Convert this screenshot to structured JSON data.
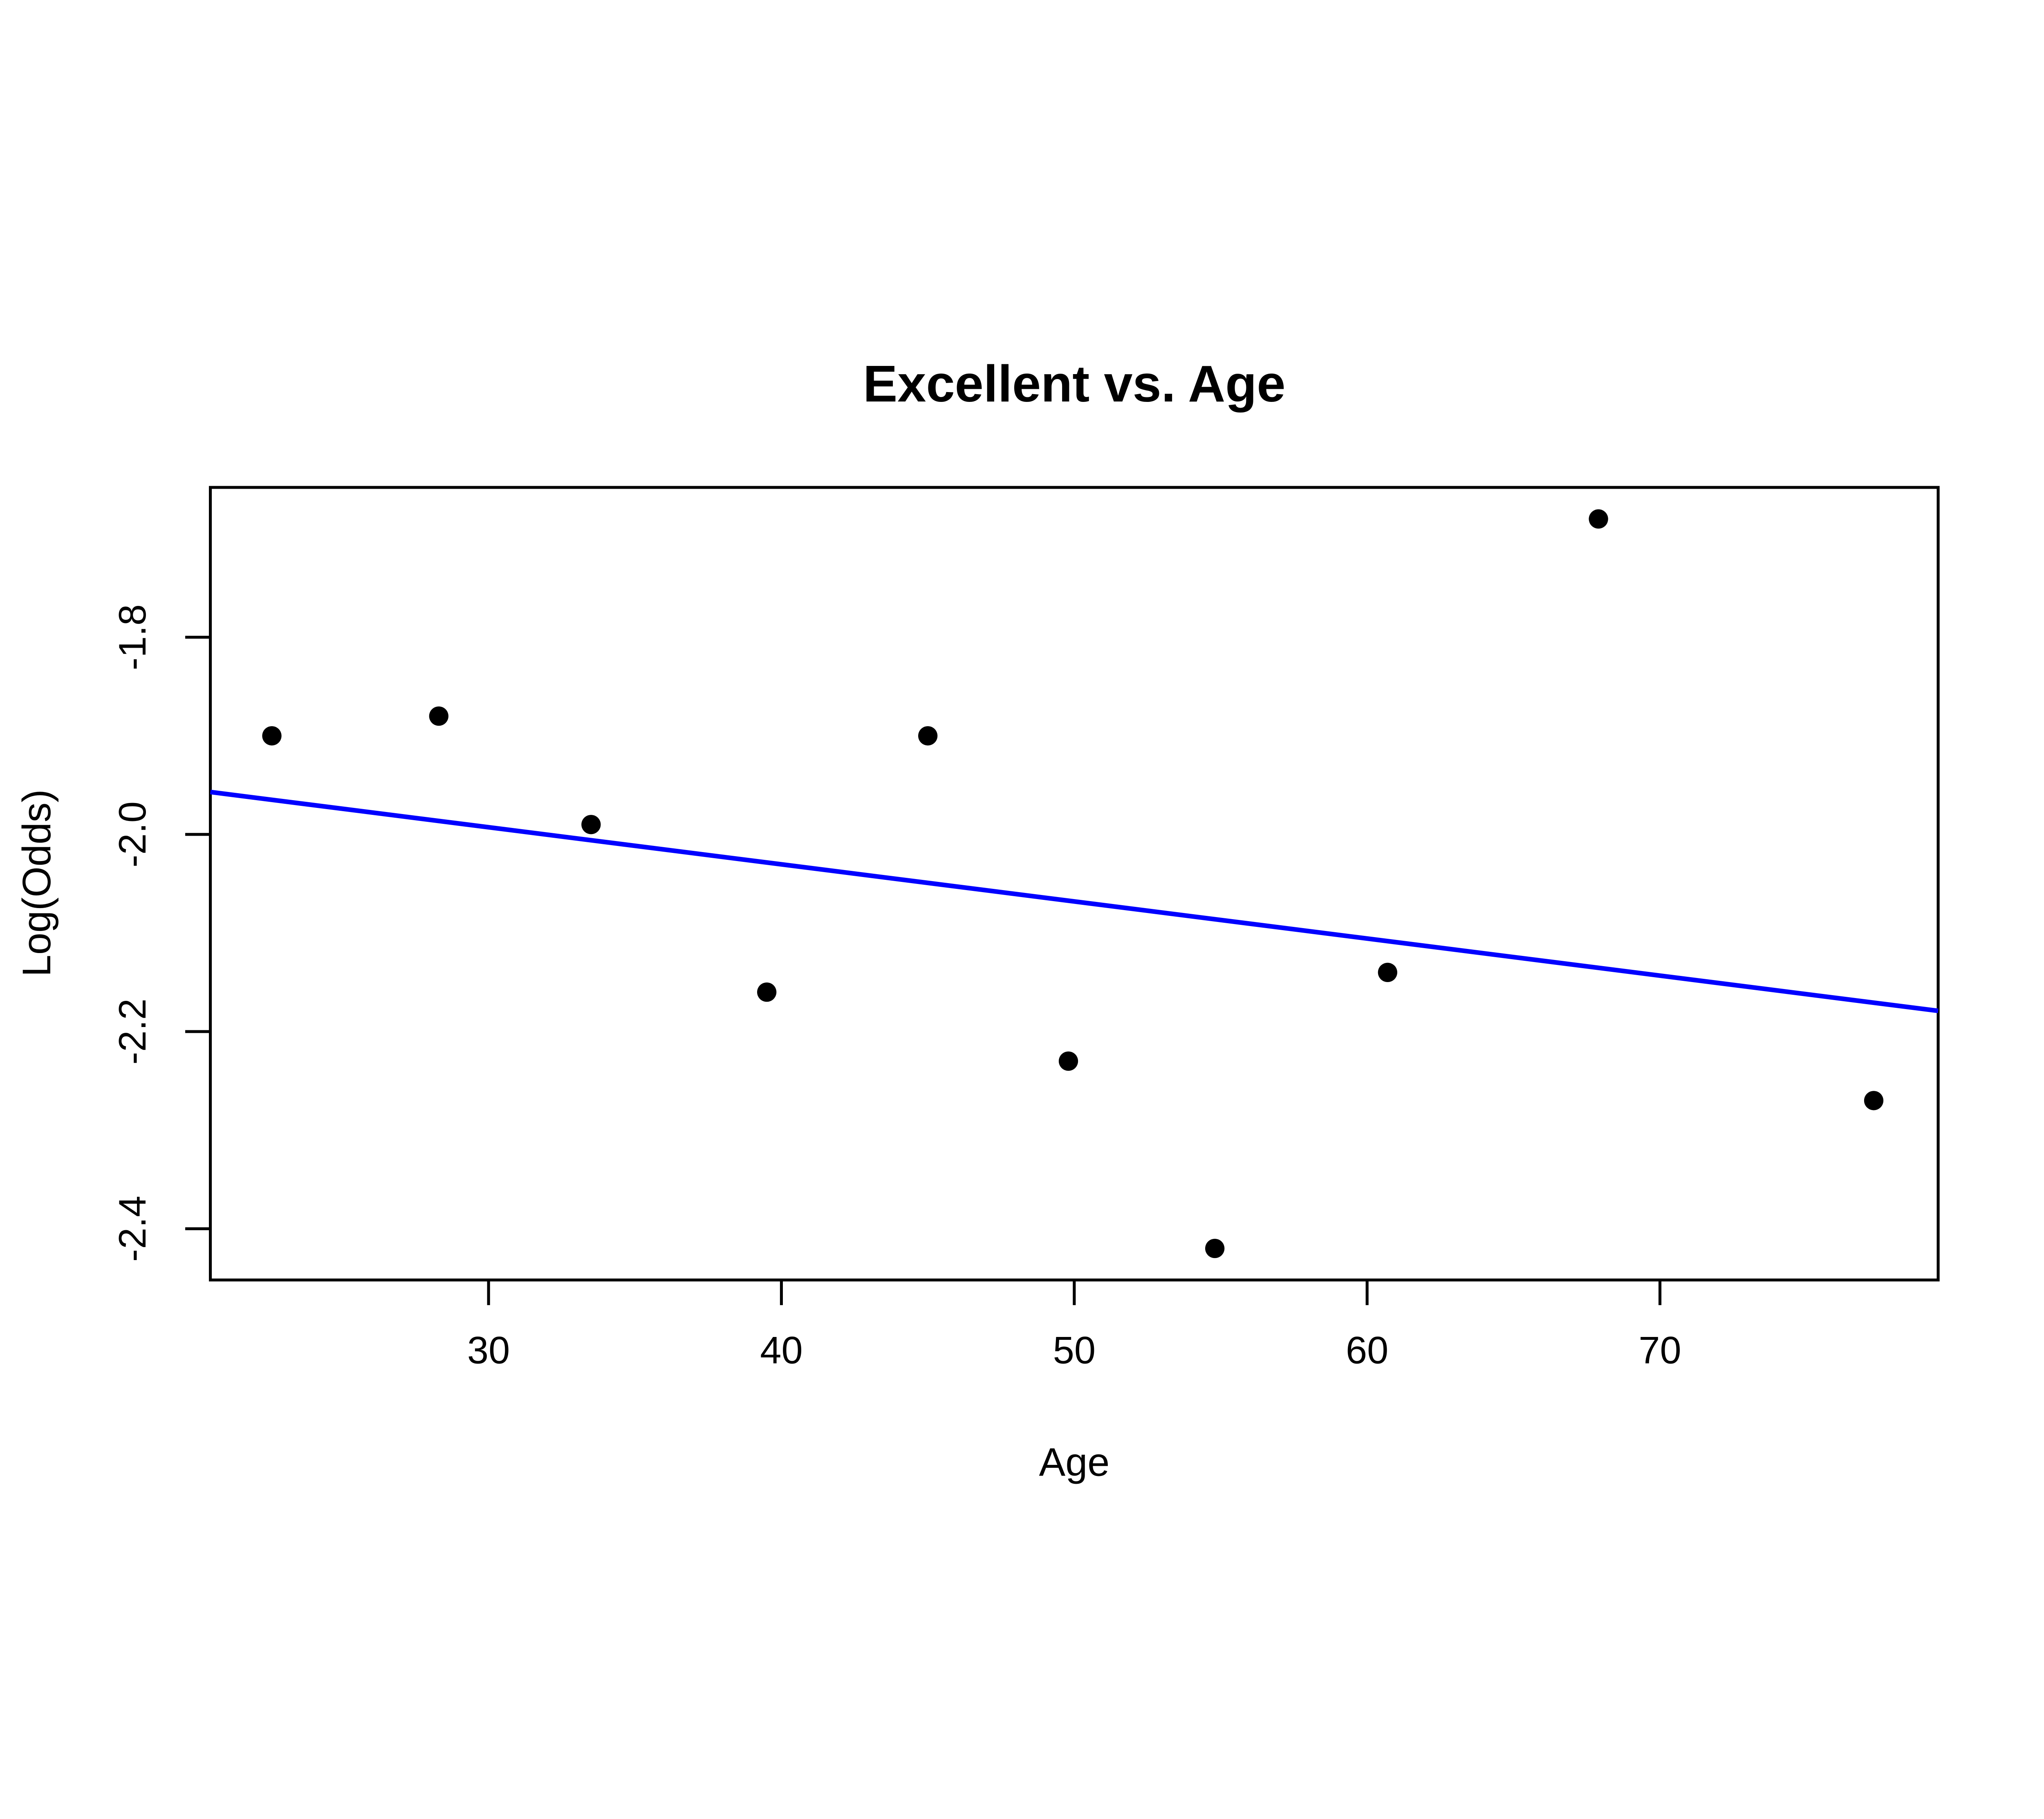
{
  "figure": {
    "background_color": "#ffffff",
    "foreground_color": "#000000"
  },
  "chart_data": {
    "type": "scatter",
    "title": "Excellent vs. Age",
    "xlabel": "Age",
    "ylabel": "Log(Odds)",
    "xlim": [
      20.5,
      79.5
    ],
    "ylim": [
      -2.452,
      -1.648
    ],
    "x_ticks": [
      30,
      40,
      50,
      60,
      70
    ],
    "y_ticks": [
      -2.4,
      -2.2,
      -2.0,
      -1.8
    ],
    "grid": false,
    "legend_position": "none",
    "point_color": "#000000",
    "point_radius": 7.3,
    "points": [
      {
        "x": 22.6,
        "y": -1.9
      },
      {
        "x": 28.3,
        "y": -1.88
      },
      {
        "x": 33.5,
        "y": -1.99
      },
      {
        "x": 39.5,
        "y": -2.16
      },
      {
        "x": 45.0,
        "y": -1.9
      },
      {
        "x": 49.8,
        "y": -2.23
      },
      {
        "x": 54.8,
        "y": -2.42
      },
      {
        "x": 60.7,
        "y": -2.14
      },
      {
        "x": 67.9,
        "y": -1.68
      },
      {
        "x": 77.3,
        "y": -2.27
      }
    ],
    "regression_line": {
      "color": "#0000ff",
      "x1": 20.5,
      "y1": -1.957,
      "x2": 79.5,
      "y2": -2.179
    }
  }
}
